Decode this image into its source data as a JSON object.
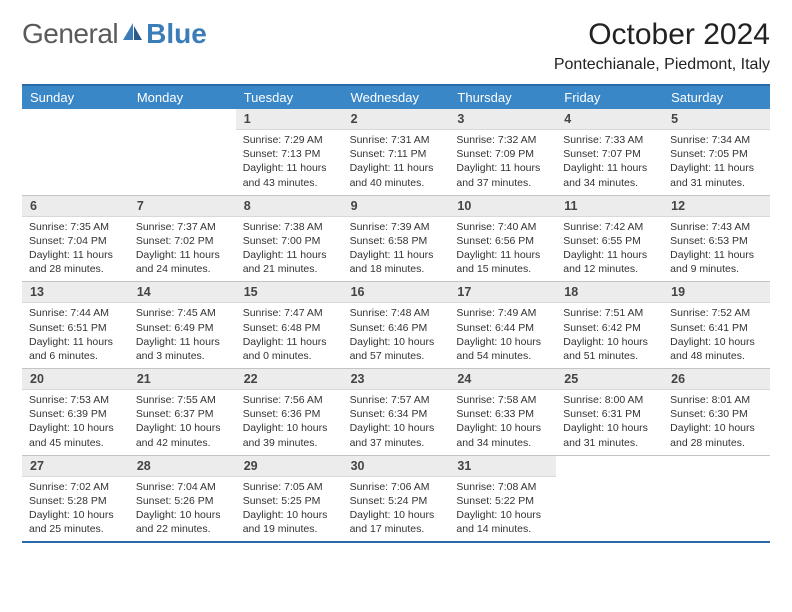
{
  "brand": {
    "part1": "General",
    "part2": "Blue"
  },
  "title": "October 2024",
  "location": "Pontechianale, Piedmont, Italy",
  "colors": {
    "header_bg": "#3a87c8",
    "border": "#2a6aa8",
    "num_bg": "#ececec",
    "text": "#333333"
  },
  "daynames": [
    "Sunday",
    "Monday",
    "Tuesday",
    "Wednesday",
    "Thursday",
    "Friday",
    "Saturday"
  ],
  "weeks": [
    [
      {
        "empty": true
      },
      {
        "empty": true
      },
      {
        "num": "1",
        "sunrise": "Sunrise: 7:29 AM",
        "sunset": "Sunset: 7:13 PM",
        "daylight": "Daylight: 11 hours and 43 minutes."
      },
      {
        "num": "2",
        "sunrise": "Sunrise: 7:31 AM",
        "sunset": "Sunset: 7:11 PM",
        "daylight": "Daylight: 11 hours and 40 minutes."
      },
      {
        "num": "3",
        "sunrise": "Sunrise: 7:32 AM",
        "sunset": "Sunset: 7:09 PM",
        "daylight": "Daylight: 11 hours and 37 minutes."
      },
      {
        "num": "4",
        "sunrise": "Sunrise: 7:33 AM",
        "sunset": "Sunset: 7:07 PM",
        "daylight": "Daylight: 11 hours and 34 minutes."
      },
      {
        "num": "5",
        "sunrise": "Sunrise: 7:34 AM",
        "sunset": "Sunset: 7:05 PM",
        "daylight": "Daylight: 11 hours and 31 minutes."
      }
    ],
    [
      {
        "num": "6",
        "sunrise": "Sunrise: 7:35 AM",
        "sunset": "Sunset: 7:04 PM",
        "daylight": "Daylight: 11 hours and 28 minutes."
      },
      {
        "num": "7",
        "sunrise": "Sunrise: 7:37 AM",
        "sunset": "Sunset: 7:02 PM",
        "daylight": "Daylight: 11 hours and 24 minutes."
      },
      {
        "num": "8",
        "sunrise": "Sunrise: 7:38 AM",
        "sunset": "Sunset: 7:00 PM",
        "daylight": "Daylight: 11 hours and 21 minutes."
      },
      {
        "num": "9",
        "sunrise": "Sunrise: 7:39 AM",
        "sunset": "Sunset: 6:58 PM",
        "daylight": "Daylight: 11 hours and 18 minutes."
      },
      {
        "num": "10",
        "sunrise": "Sunrise: 7:40 AM",
        "sunset": "Sunset: 6:56 PM",
        "daylight": "Daylight: 11 hours and 15 minutes."
      },
      {
        "num": "11",
        "sunrise": "Sunrise: 7:42 AM",
        "sunset": "Sunset: 6:55 PM",
        "daylight": "Daylight: 11 hours and 12 minutes."
      },
      {
        "num": "12",
        "sunrise": "Sunrise: 7:43 AM",
        "sunset": "Sunset: 6:53 PM",
        "daylight": "Daylight: 11 hours and 9 minutes."
      }
    ],
    [
      {
        "num": "13",
        "sunrise": "Sunrise: 7:44 AM",
        "sunset": "Sunset: 6:51 PM",
        "daylight": "Daylight: 11 hours and 6 minutes."
      },
      {
        "num": "14",
        "sunrise": "Sunrise: 7:45 AM",
        "sunset": "Sunset: 6:49 PM",
        "daylight": "Daylight: 11 hours and 3 minutes."
      },
      {
        "num": "15",
        "sunrise": "Sunrise: 7:47 AM",
        "sunset": "Sunset: 6:48 PM",
        "daylight": "Daylight: 11 hours and 0 minutes."
      },
      {
        "num": "16",
        "sunrise": "Sunrise: 7:48 AM",
        "sunset": "Sunset: 6:46 PM",
        "daylight": "Daylight: 10 hours and 57 minutes."
      },
      {
        "num": "17",
        "sunrise": "Sunrise: 7:49 AM",
        "sunset": "Sunset: 6:44 PM",
        "daylight": "Daylight: 10 hours and 54 minutes."
      },
      {
        "num": "18",
        "sunrise": "Sunrise: 7:51 AM",
        "sunset": "Sunset: 6:42 PM",
        "daylight": "Daylight: 10 hours and 51 minutes."
      },
      {
        "num": "19",
        "sunrise": "Sunrise: 7:52 AM",
        "sunset": "Sunset: 6:41 PM",
        "daylight": "Daylight: 10 hours and 48 minutes."
      }
    ],
    [
      {
        "num": "20",
        "sunrise": "Sunrise: 7:53 AM",
        "sunset": "Sunset: 6:39 PM",
        "daylight": "Daylight: 10 hours and 45 minutes."
      },
      {
        "num": "21",
        "sunrise": "Sunrise: 7:55 AM",
        "sunset": "Sunset: 6:37 PM",
        "daylight": "Daylight: 10 hours and 42 minutes."
      },
      {
        "num": "22",
        "sunrise": "Sunrise: 7:56 AM",
        "sunset": "Sunset: 6:36 PM",
        "daylight": "Daylight: 10 hours and 39 minutes."
      },
      {
        "num": "23",
        "sunrise": "Sunrise: 7:57 AM",
        "sunset": "Sunset: 6:34 PM",
        "daylight": "Daylight: 10 hours and 37 minutes."
      },
      {
        "num": "24",
        "sunrise": "Sunrise: 7:58 AM",
        "sunset": "Sunset: 6:33 PM",
        "daylight": "Daylight: 10 hours and 34 minutes."
      },
      {
        "num": "25",
        "sunrise": "Sunrise: 8:00 AM",
        "sunset": "Sunset: 6:31 PM",
        "daylight": "Daylight: 10 hours and 31 minutes."
      },
      {
        "num": "26",
        "sunrise": "Sunrise: 8:01 AM",
        "sunset": "Sunset: 6:30 PM",
        "daylight": "Daylight: 10 hours and 28 minutes."
      }
    ],
    [
      {
        "num": "27",
        "sunrise": "Sunrise: 7:02 AM",
        "sunset": "Sunset: 5:28 PM",
        "daylight": "Daylight: 10 hours and 25 minutes."
      },
      {
        "num": "28",
        "sunrise": "Sunrise: 7:04 AM",
        "sunset": "Sunset: 5:26 PM",
        "daylight": "Daylight: 10 hours and 22 minutes."
      },
      {
        "num": "29",
        "sunrise": "Sunrise: 7:05 AM",
        "sunset": "Sunset: 5:25 PM",
        "daylight": "Daylight: 10 hours and 19 minutes."
      },
      {
        "num": "30",
        "sunrise": "Sunrise: 7:06 AM",
        "sunset": "Sunset: 5:24 PM",
        "daylight": "Daylight: 10 hours and 17 minutes."
      },
      {
        "num": "31",
        "sunrise": "Sunrise: 7:08 AM",
        "sunset": "Sunset: 5:22 PM",
        "daylight": "Daylight: 10 hours and 14 minutes."
      },
      {
        "empty": true
      },
      {
        "empty": true
      }
    ]
  ]
}
